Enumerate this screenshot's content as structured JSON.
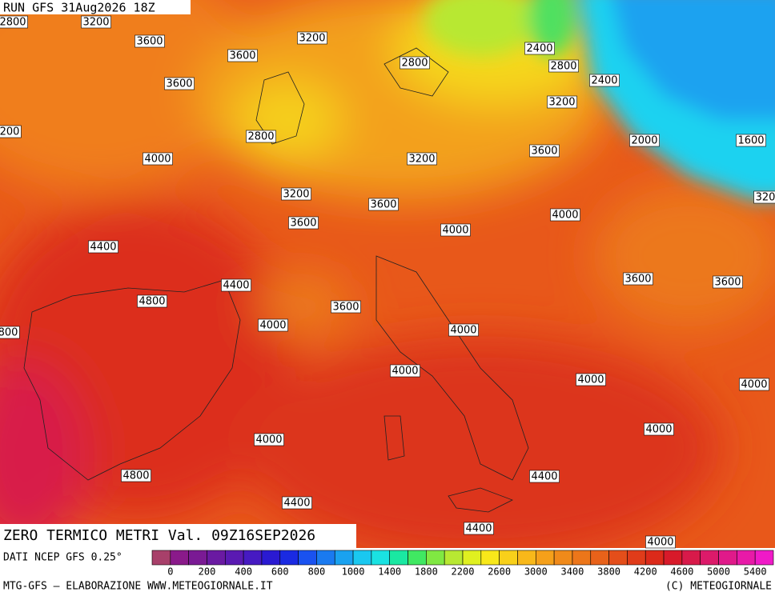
{
  "header": {
    "run": "RUN GFS 31Aug2026 18Z"
  },
  "title": "ZERO TERMICO METRI Val. 09Z16SEP2026",
  "source": "DATI NCEP GFS 0.25°",
  "footer": {
    "left": "MTG-GFS — ELABORAZIONE WWW.METEOGIORNALE.IT",
    "right": "(C) METEOGIORNALE"
  },
  "contour_labels": [
    "2800",
    "3200",
    "3600",
    "3200",
    "3600",
    "2800",
    "2400",
    "2800",
    "2400",
    "3600",
    "3200",
    "200",
    "2800",
    "2000",
    "1600",
    "4000",
    "3200",
    "3600",
    "3200",
    "3600",
    "320",
    "4000",
    "3600",
    "4000",
    "4400",
    "4400",
    "3600",
    "3600",
    "4800",
    "3600",
    "800",
    "4000",
    "4000",
    "4000",
    "4000",
    "4000",
    "4000",
    "4000",
    "4800",
    "4400",
    "4400",
    "4400",
    "4000"
  ],
  "colorbar": {
    "colors": [
      "#a8406a",
      "#8a1a8a",
      "#7a1a94",
      "#6a1aa2",
      "#5a1ab2",
      "#461ac2",
      "#2a1ad2",
      "#1a2ae2",
      "#1a52f0",
      "#1a7af0",
      "#1aa2f0",
      "#1ac8f0",
      "#1ae2e2",
      "#1ae8a2",
      "#40e862",
      "#80e842",
      "#b8e832",
      "#e0f020",
      "#f8e81a",
      "#f8d01a",
      "#f8b81a",
      "#f5a01a",
      "#f08a1a",
      "#ec761a",
      "#e8621a",
      "#e44e1a",
      "#e03c1a",
      "#dc2a1a",
      "#d81a2a",
      "#d81a4a",
      "#dc1a6a",
      "#e01a8a",
      "#e81aa8",
      "#f01ac8"
    ],
    "labels": [
      "0",
      "200",
      "400",
      "600",
      "800",
      "1000",
      "1400",
      "1800",
      "2200",
      "2600",
      "3000",
      "3400",
      "3800",
      "4200",
      "4600",
      "5000",
      "5400"
    ]
  }
}
